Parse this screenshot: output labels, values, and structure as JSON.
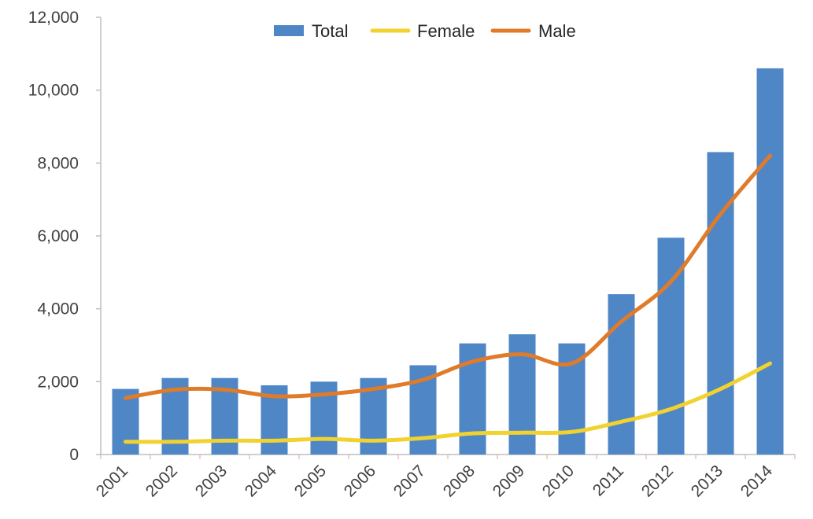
{
  "chart_data": {
    "type": "bar",
    "categories": [
      "2001",
      "2002",
      "2003",
      "2004",
      "2005",
      "2006",
      "2007",
      "2008",
      "2009",
      "2010",
      "2011",
      "2012",
      "2013",
      "2014"
    ],
    "series": [
      {
        "name": "Total",
        "type": "bar",
        "color": "#4F86C6",
        "values": [
          1800,
          2100,
          2100,
          1900,
          2000,
          2100,
          2450,
          3050,
          3300,
          3050,
          4400,
          5950,
          8300,
          10600
        ]
      },
      {
        "name": "Female",
        "type": "line",
        "color": "#F2D22E",
        "values": [
          350,
          350,
          380,
          380,
          430,
          380,
          450,
          580,
          600,
          620,
          900,
          1250,
          1800,
          2500
        ]
      },
      {
        "name": "Male",
        "type": "line",
        "color": "#E07B2A",
        "values": [
          1550,
          1780,
          1780,
          1600,
          1650,
          1800,
          2050,
          2550,
          2750,
          2500,
          3650,
          4750,
          6600,
          8200
        ]
      }
    ],
    "ylim": [
      0,
      12000
    ],
    "yticks": [
      "0",
      "2,000",
      "4,000",
      "6,000",
      "8,000",
      "10,000",
      "12,000"
    ],
    "ytick_values": [
      0,
      2000,
      4000,
      6000,
      8000,
      10000,
      12000
    ],
    "legend_position": "top",
    "grid": false
  }
}
